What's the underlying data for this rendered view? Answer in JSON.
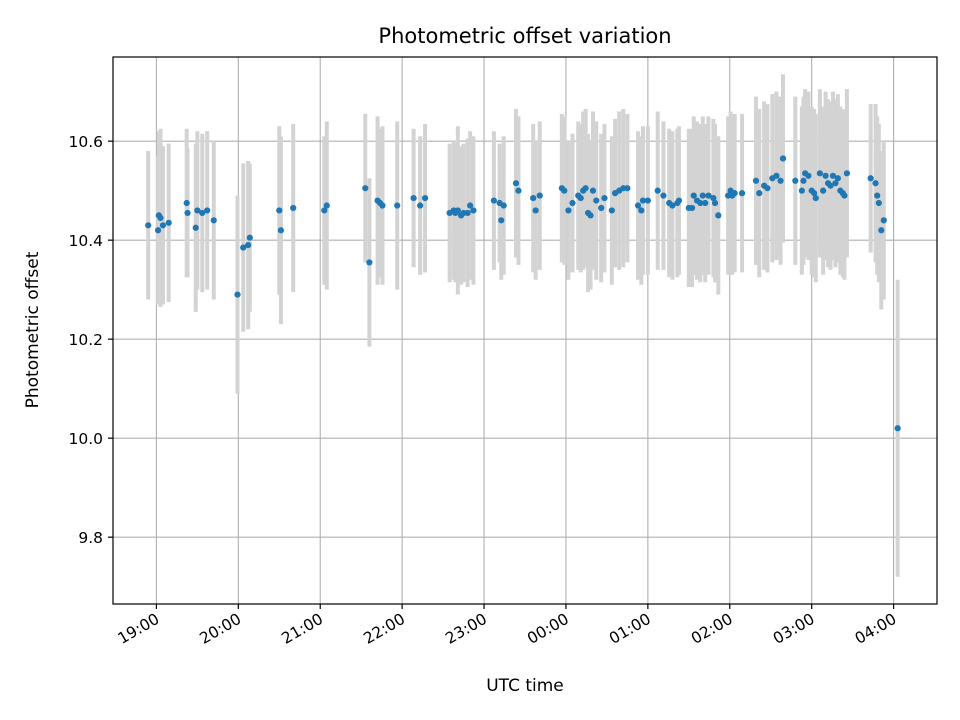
{
  "chart_data": {
    "type": "scatter",
    "title": "Photometric offset variation",
    "xlabel": "UTC time",
    "ylabel": "Photometric offset",
    "x_unit": "hours since 19:00 UTC",
    "xlim": [
      -0.53,
      9.53
    ],
    "ylim": [
      9.665,
      10.77
    ],
    "x_tick_values": [
      0,
      1,
      2,
      3,
      4,
      5,
      6,
      7,
      8,
      9
    ],
    "x_tick_labels": [
      "19:00",
      "20:00",
      "21:00",
      "22:00",
      "23:00",
      "00:00",
      "01:00",
      "02:00",
      "03:00",
      "04:00"
    ],
    "y_ticks": [
      9.8,
      10.0,
      10.2,
      10.4,
      10.6
    ],
    "y_tick_labels": [
      "9.8",
      "10.0",
      "10.2",
      "10.4",
      "10.6"
    ],
    "grid": true,
    "errorbar_color": "#d3d3d3",
    "point_color": "#1f77b4",
    "points": [
      [
        -0.1,
        10.43,
        0.15
      ],
      [
        0.02,
        10.42,
        0.15
      ],
      [
        0.03,
        10.45,
        0.17
      ],
      [
        0.05,
        10.445,
        0.18
      ],
      [
        0.08,
        10.43,
        0.16
      ],
      [
        0.15,
        10.435,
        0.16
      ],
      [
        0.37,
        10.475,
        0.15
      ],
      [
        0.38,
        10.455,
        0.13
      ],
      [
        0.48,
        10.425,
        0.17
      ],
      [
        0.5,
        10.46,
        0.16
      ],
      [
        0.56,
        10.455,
        0.16
      ],
      [
        0.62,
        10.46,
        0.16
      ],
      [
        0.7,
        10.44,
        0.16
      ],
      [
        0.99,
        10.29,
        0.2
      ],
      [
        1.06,
        10.385,
        0.17
      ],
      [
        1.12,
        10.39,
        0.17
      ],
      [
        1.14,
        10.405,
        0.15
      ],
      [
        1.5,
        10.46,
        0.17
      ],
      [
        1.52,
        10.42,
        0.19
      ],
      [
        1.67,
        10.465,
        0.17
      ],
      [
        2.05,
        10.46,
        0.15
      ],
      [
        2.08,
        10.47,
        0.17
      ],
      [
        2.55,
        10.505,
        0.15
      ],
      [
        2.6,
        10.355,
        0.17
      ],
      [
        2.7,
        10.48,
        0.17
      ],
      [
        2.73,
        10.475,
        0.15
      ],
      [
        2.76,
        10.47,
        0.16
      ],
      [
        2.94,
        10.47,
        0.17
      ],
      [
        3.14,
        10.485,
        0.14
      ],
      [
        3.22,
        10.47,
        0.14
      ],
      [
        3.28,
        10.485,
        0.15
      ],
      [
        3.58,
        10.455,
        0.14
      ],
      [
        3.63,
        10.46,
        0.14
      ],
      [
        3.65,
        10.455,
        0.14
      ],
      [
        3.68,
        10.46,
        0.17
      ],
      [
        3.72,
        10.45,
        0.14
      ],
      [
        3.75,
        10.455,
        0.14
      ],
      [
        3.8,
        10.455,
        0.15
      ],
      [
        3.83,
        10.47,
        0.15
      ],
      [
        3.87,
        10.46,
        0.15
      ],
      [
        4.12,
        10.48,
        0.14
      ],
      [
        4.19,
        10.475,
        0.12
      ],
      [
        4.21,
        10.44,
        0.12
      ],
      [
        4.24,
        10.47,
        0.14
      ],
      [
        4.39,
        10.515,
        0.15
      ],
      [
        4.42,
        10.5,
        0.15
      ],
      [
        4.6,
        10.485,
        0.15
      ],
      [
        4.63,
        10.46,
        0.14
      ],
      [
        4.68,
        10.49,
        0.15
      ],
      [
        4.95,
        10.505,
        0.15
      ],
      [
        4.98,
        10.5,
        0.15
      ],
      [
        5.03,
        10.46,
        0.14
      ],
      [
        5.08,
        10.475,
        0.14
      ],
      [
        5.15,
        10.49,
        0.15
      ],
      [
        5.18,
        10.485,
        0.15
      ],
      [
        5.21,
        10.5,
        0.16
      ],
      [
        5.24,
        10.505,
        0.16
      ],
      [
        5.27,
        10.455,
        0.16
      ],
      [
        5.3,
        10.45,
        0.15
      ],
      [
        5.33,
        10.5,
        0.16
      ],
      [
        5.37,
        10.48,
        0.16
      ],
      [
        5.43,
        10.465,
        0.15
      ],
      [
        5.47,
        10.485,
        0.15
      ],
      [
        5.56,
        10.46,
        0.15
      ],
      [
        5.6,
        10.495,
        0.15
      ],
      [
        5.65,
        10.5,
        0.16
      ],
      [
        5.7,
        10.505,
        0.16
      ],
      [
        5.75,
        10.505,
        0.15
      ],
      [
        5.88,
        10.47,
        0.15
      ],
      [
        5.92,
        10.46,
        0.15
      ],
      [
        5.94,
        10.48,
        0.15
      ],
      [
        6.0,
        10.48,
        0.15
      ],
      [
        6.12,
        10.5,
        0.16
      ],
      [
        6.19,
        10.49,
        0.15
      ],
      [
        6.26,
        10.475,
        0.15
      ],
      [
        6.3,
        10.47,
        0.15
      ],
      [
        6.36,
        10.475,
        0.15
      ],
      [
        6.38,
        10.48,
        0.15
      ],
      [
        6.5,
        10.465,
        0.16
      ],
      [
        6.54,
        10.465,
        0.16
      ],
      [
        6.56,
        10.49,
        0.16
      ],
      [
        6.6,
        10.48,
        0.16
      ],
      [
        6.64,
        10.475,
        0.16
      ],
      [
        6.67,
        10.49,
        0.16
      ],
      [
        6.7,
        10.475,
        0.16
      ],
      [
        6.74,
        10.49,
        0.16
      ],
      [
        6.8,
        10.485,
        0.16
      ],
      [
        6.82,
        10.475,
        0.16
      ],
      [
        6.86,
        10.45,
        0.16
      ],
      [
        6.98,
        10.49,
        0.16
      ],
      [
        7.01,
        10.5,
        0.16
      ],
      [
        7.03,
        10.49,
        0.16
      ],
      [
        7.06,
        10.495,
        0.16
      ],
      [
        7.15,
        10.495,
        0.16
      ],
      [
        7.32,
        10.52,
        0.17
      ],
      [
        7.36,
        10.495,
        0.17
      ],
      [
        7.42,
        10.51,
        0.17
      ],
      [
        7.46,
        10.505,
        0.17
      ],
      [
        7.52,
        10.525,
        0.17
      ],
      [
        7.57,
        10.53,
        0.17
      ],
      [
        7.62,
        10.52,
        0.17
      ],
      [
        7.65,
        10.565,
        0.17
      ],
      [
        7.8,
        10.52,
        0.17
      ],
      [
        7.88,
        10.5,
        0.17
      ],
      [
        7.9,
        10.52,
        0.17
      ],
      [
        7.92,
        10.535,
        0.17
      ],
      [
        7.96,
        10.53,
        0.17
      ],
      [
        8.0,
        10.5,
        0.17
      ],
      [
        8.03,
        10.495,
        0.17
      ],
      [
        8.05,
        10.485,
        0.17
      ],
      [
        8.1,
        10.535,
        0.17
      ],
      [
        8.14,
        10.5,
        0.17
      ],
      [
        8.17,
        10.53,
        0.17
      ],
      [
        8.2,
        10.515,
        0.17
      ],
      [
        8.23,
        10.51,
        0.17
      ],
      [
        8.26,
        10.53,
        0.17
      ],
      [
        8.29,
        10.515,
        0.17
      ],
      [
        8.32,
        10.525,
        0.17
      ],
      [
        8.35,
        10.5,
        0.17
      ],
      [
        8.38,
        10.495,
        0.17
      ],
      [
        8.4,
        10.49,
        0.17
      ],
      [
        8.43,
        10.535,
        0.17
      ],
      [
        8.72,
        10.525,
        0.15
      ],
      [
        8.78,
        10.515,
        0.16
      ],
      [
        8.8,
        10.49,
        0.16
      ],
      [
        8.82,
        10.475,
        0.16
      ],
      [
        8.85,
        10.42,
        0.16
      ],
      [
        8.88,
        10.44,
        0.16
      ],
      [
        9.05,
        10.02,
        0.3
      ]
    ]
  }
}
